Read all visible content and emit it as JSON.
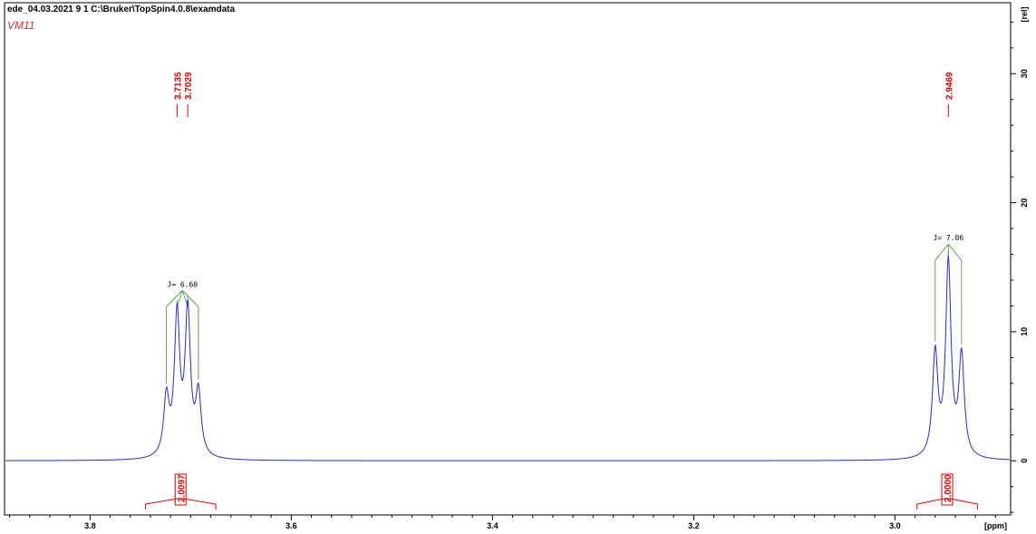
{
  "header": {
    "title": "ede_04.03.2021  9  1  C:\\Bruker\\TopSpin4.0.8\\examdata",
    "sample": "VM11"
  },
  "colors": {
    "spectrum": "#2b2bd6",
    "peak_labels": "#e00000",
    "multiplet": "#5aa05a",
    "axis": "#000000"
  },
  "chart_data": {
    "type": "line",
    "xlabel": "[ppm]",
    "ylabel": "[rel]",
    "xlim": [
      3.885,
      2.885
    ],
    "ylim": [
      -4.2,
      35.5
    ],
    "x_ticks": [
      "3.8",
      "3.6",
      "3.4",
      "3.2",
      "3.0"
    ],
    "x_tick_values": [
      3.8,
      3.6,
      3.4,
      3.2,
      3.0
    ],
    "y_ticks": [
      "0",
      "10",
      "20",
      "30"
    ],
    "y_tick_values": [
      0,
      10,
      20,
      30
    ],
    "grid": false,
    "series": [
      {
        "peaks": [
          {
            "x": 3.7241,
            "y": 4.5
          },
          {
            "x": 3.7135,
            "y": 10.8
          },
          {
            "x": 3.7029,
            "y": 11.1
          },
          {
            "x": 3.6923,
            "y": 4.8
          },
          {
            "x": 2.96,
            "y": 8.0
          },
          {
            "x": 2.9469,
            "y": 15.0
          },
          {
            "x": 2.9338,
            "y": 7.8
          }
        ]
      }
    ],
    "peak_labels": [
      {
        "text": "3.7135",
        "x": 3.7135
      },
      {
        "text": "3.7029",
        "x": 3.7029
      },
      {
        "text": "2.9469",
        "x": 2.9469
      }
    ],
    "multiplets": [
      {
        "label": "J= 6.60",
        "x": [
          3.7241,
          3.7135,
          3.7029,
          3.6923
        ],
        "apex": 13.2
      },
      {
        "label": "J= 7.06",
        "x": [
          2.96,
          2.9469,
          2.9338
        ],
        "apex": 16.8
      }
    ],
    "integrals": [
      {
        "value": "2.0097",
        "x_from": 3.745,
        "x_to": 3.675
      },
      {
        "value": "2.0000",
        "x_from": 2.978,
        "x_to": 2.918
      }
    ]
  }
}
